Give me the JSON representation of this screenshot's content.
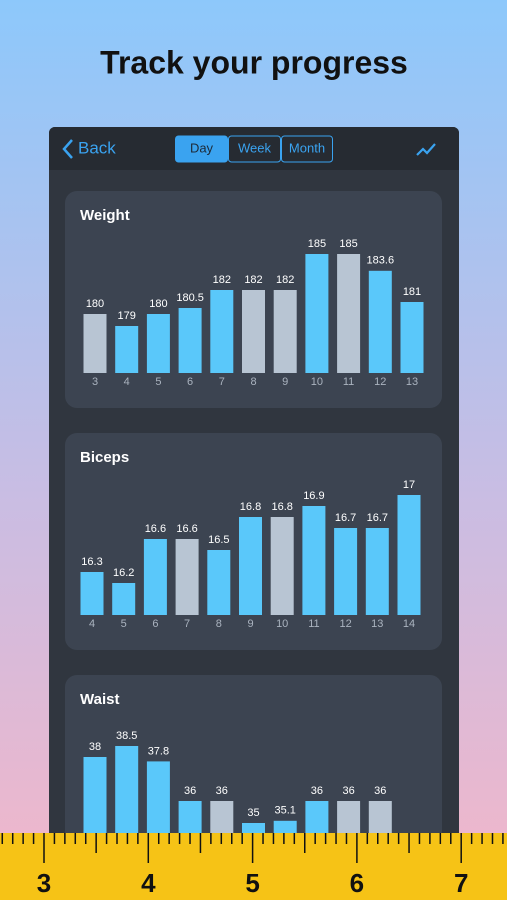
{
  "title": "Track your progress",
  "nav": {
    "back": "Back",
    "segments": [
      "Day",
      "Week",
      "Month"
    ],
    "selected": 0
  },
  "cards": [
    {
      "title": "Weight",
      "categories": [
        "3",
        "4",
        "5",
        "6",
        "7",
        "8",
        "9",
        "10",
        "11",
        "12",
        "13"
      ],
      "values": [
        180,
        179,
        180,
        180.5,
        182,
        182,
        182,
        185,
        185,
        183.6,
        181
      ],
      "colors": [
        "#b8c5d3",
        "#5ac8fa",
        "#5ac8fa",
        "#5ac8fa",
        "#5ac8fa",
        "#b8c5d3",
        "#b8c5d3",
        "#5ac8fa",
        "#b8c5d3",
        "#5ac8fa",
        "#5ac8fa"
      ]
    },
    {
      "title": "Biceps",
      "categories": [
        "4",
        "5",
        "6",
        "7",
        "8",
        "9",
        "10",
        "11",
        "12",
        "13",
        "14"
      ],
      "values": [
        16.3,
        16.2,
        16.6,
        16.6,
        16.5,
        16.8,
        16.8,
        16.9,
        16.7,
        16.7,
        17
      ],
      "colors": [
        "#5ac8fa",
        "#5ac8fa",
        "#5ac8fa",
        "#b8c5d3",
        "#5ac8fa",
        "#5ac8fa",
        "#b8c5d3",
        "#5ac8fa",
        "#5ac8fa",
        "#5ac8fa",
        "#5ac8fa"
      ]
    },
    {
      "title": "Waist",
      "values": [
        38,
        38.5,
        37.8,
        36,
        36,
        35,
        35.1,
        36,
        36,
        36
      ],
      "colors": [
        "#5ac8fa",
        "#5ac8fa",
        "#5ac8fa",
        "#5ac8fa",
        "#b8c5d3",
        "#5ac8fa",
        "#5ac8fa",
        "#5ac8fa",
        "#b8c5d3",
        "#b8c5d3"
      ]
    }
  ],
  "ruler": {
    "labels": [
      "3",
      "4",
      "5",
      "6",
      "7"
    ]
  }
}
